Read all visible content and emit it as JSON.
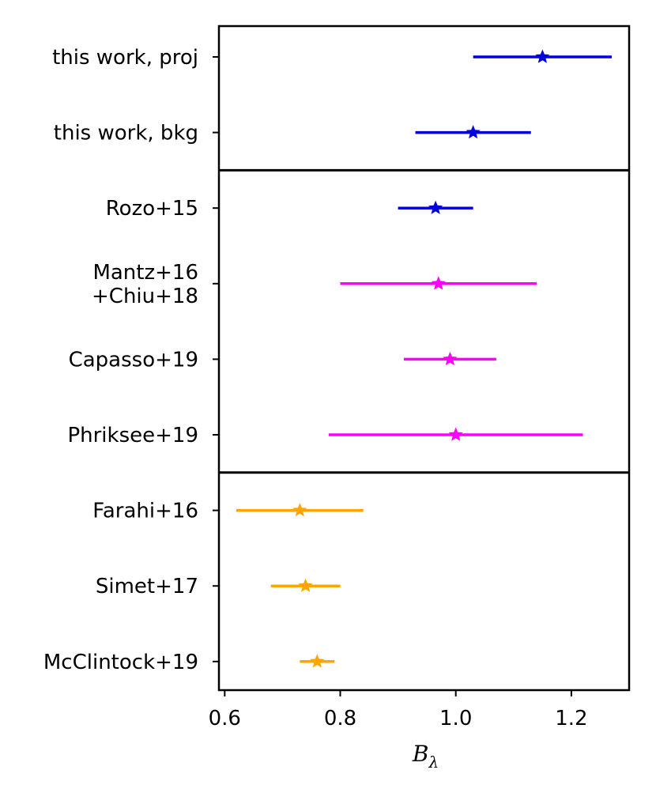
{
  "chart_data": {
    "type": "errorbar",
    "title": "",
    "xlabel": "B",
    "xlabel_sub": "λ",
    "ylabel": "",
    "xlim": [
      0.59,
      1.3
    ],
    "xticks": [
      0.6,
      0.8,
      1.0,
      1.2
    ],
    "xtick_labels": [
      "0.6",
      "0.8",
      "1.0",
      "1.2"
    ],
    "grid": false,
    "legend": "none",
    "entries": [
      {
        "label": [
          "this work, proj"
        ],
        "value": 1.15,
        "lower": 1.03,
        "upper": 1.27,
        "color": "#0000dd"
      },
      {
        "label": [
          "this work, bkg"
        ],
        "value": 1.03,
        "lower": 0.93,
        "upper": 1.13,
        "color": "#0000dd"
      },
      {
        "label": [
          "Rozo+15"
        ],
        "value": 0.965,
        "lower": 0.9,
        "upper": 1.03,
        "color": "#0000dd"
      },
      {
        "label": [
          "Mantz+16",
          "+Chiu+18"
        ],
        "value": 0.97,
        "lower": 0.8,
        "upper": 1.14,
        "color": "#ff00ff"
      },
      {
        "label": [
          "Capasso+19"
        ],
        "value": 0.99,
        "lower": 0.91,
        "upper": 1.07,
        "color": "#ff00ff"
      },
      {
        "label": [
          "Phriksee+19"
        ],
        "value": 1.0,
        "lower": 0.78,
        "upper": 1.22,
        "color": "#ff00ff"
      },
      {
        "label": [
          "Farahi+16"
        ],
        "value": 0.73,
        "lower": 0.62,
        "upper": 0.84,
        "color": "#ffa500"
      },
      {
        "label": [
          "Simet+17"
        ],
        "value": 0.74,
        "lower": 0.68,
        "upper": 0.8,
        "color": "#ffa500"
      },
      {
        "label": [
          "McClintock+19"
        ],
        "value": 0.76,
        "lower": 0.73,
        "upper": 0.79,
        "color": "#ffa500"
      }
    ],
    "group_separators_after": [
      1,
      5
    ]
  }
}
